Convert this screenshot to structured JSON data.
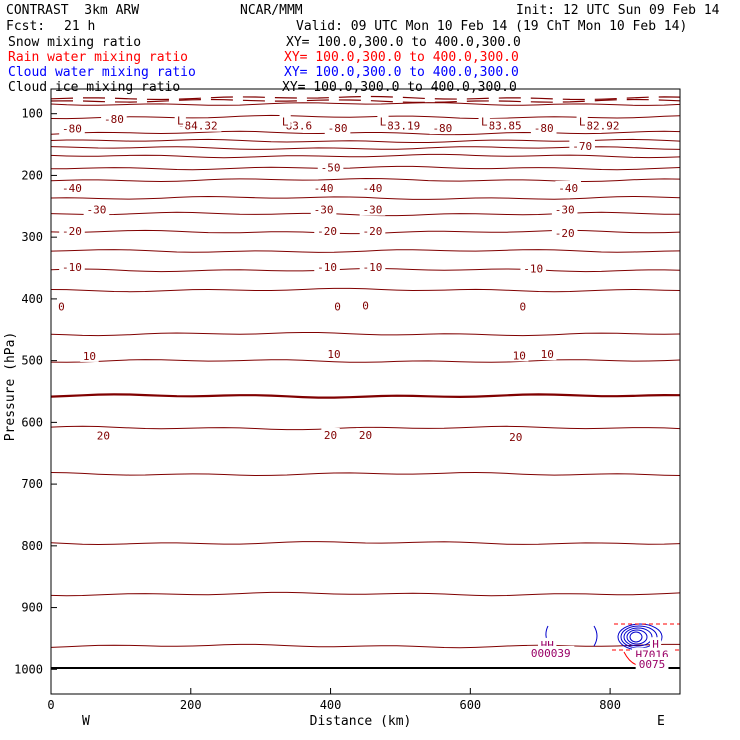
{
  "header": {
    "model": "CONTRAST  3km ARW",
    "org": "NCAR/MMM",
    "init": "Init: 12 UTC Sun 09 Feb 14",
    "fcst_label": "Fcst:",
    "fcst_value": "21 h",
    "valid": "Valid: 09 UTC Mon 10 Feb 14 (19 ChT Mon 10 Feb 14)"
  },
  "legend": [
    {
      "field": "Snow mixing ratio",
      "xy": "XY= 100.0,300.0 to 400.0,300.0",
      "color": "#000000"
    },
    {
      "field": "Rain water mixing ratio",
      "xy": "XY= 100.0,300.0 to 400.0,300.0",
      "color": "#ff0000"
    },
    {
      "field": "Cloud water mixing ratio",
      "xy": "XY= 100.0,300.0 to 400.0,300.0",
      "color": "#0000ff"
    },
    {
      "field": "Cloud ice mixing ratio",
      "xy": "XY= 100.0,300.0 to 400.0,300.0",
      "color": "#000000"
    }
  ],
  "colors": {
    "temperature": "#800000",
    "frame": "#000000",
    "cloud_water": "#0000cc",
    "rain": "#ff0000",
    "cloud_ice_label": "#990066"
  },
  "axes": {
    "xlabel": "Distance (km)",
    "ylabel": "Pressure (hPa)",
    "x_ticks": [
      "0",
      "200",
      "400",
      "600",
      "800"
    ],
    "y_ticks": [
      "100",
      "200",
      "300",
      "400",
      "500",
      "600",
      "700",
      "800",
      "900",
      "1000"
    ],
    "left_end": "W",
    "right_end": "E"
  },
  "chart_data": {
    "type": "contour-cross-section",
    "x_range_km": [
      0,
      900
    ],
    "p_range_hPa": [
      60,
      1040
    ],
    "isotherm_labels": [
      {
        "text": "-80",
        "x": 90,
        "p": 110
      },
      {
        "text": "-80",
        "x": 30,
        "p": 126
      },
      {
        "text": "-84.32",
        "x": 210,
        "p": 121
      },
      {
        "text": "-83.6",
        "x": 350,
        "p": 121
      },
      {
        "text": "-80",
        "x": 410,
        "p": 125
      },
      {
        "text": "-83.19",
        "x": 500,
        "p": 121
      },
      {
        "text": "-80",
        "x": 560,
        "p": 125
      },
      {
        "text": "-83.85",
        "x": 645,
        "p": 121
      },
      {
        "text": "-80",
        "x": 705,
        "p": 125
      },
      {
        "text": "-82.92",
        "x": 785,
        "p": 121
      },
      {
        "text": "-70",
        "x": 760,
        "p": 154
      },
      {
        "text": "-50",
        "x": 400,
        "p": 189
      },
      {
        "text": "-40",
        "x": 30,
        "p": 222
      },
      {
        "text": "-40",
        "x": 390,
        "p": 222
      },
      {
        "text": "-40",
        "x": 460,
        "p": 222
      },
      {
        "text": "-40",
        "x": 740,
        "p": 222
      },
      {
        "text": "-30",
        "x": 65,
        "p": 257
      },
      {
        "text": "-30",
        "x": 390,
        "p": 257
      },
      {
        "text": "-30",
        "x": 460,
        "p": 257
      },
      {
        "text": "-30",
        "x": 735,
        "p": 257
      },
      {
        "text": "-20",
        "x": 30,
        "p": 292
      },
      {
        "text": "-20",
        "x": 395,
        "p": 292
      },
      {
        "text": "-20",
        "x": 460,
        "p": 292
      },
      {
        "text": "-20",
        "x": 735,
        "p": 295
      },
      {
        "text": "-10",
        "x": 30,
        "p": 350
      },
      {
        "text": "-10",
        "x": 395,
        "p": 350
      },
      {
        "text": "-10",
        "x": 460,
        "p": 350
      },
      {
        "text": "-10",
        "x": 690,
        "p": 352
      },
      {
        "text": "0",
        "x": 15,
        "p": 414
      },
      {
        "text": "0",
        "x": 410,
        "p": 414
      },
      {
        "text": "0",
        "x": 450,
        "p": 412
      },
      {
        "text": "0",
        "x": 675,
        "p": 414
      },
      {
        "text": "10",
        "x": 55,
        "p": 494
      },
      {
        "text": "10",
        "x": 405,
        "p": 491
      },
      {
        "text": "10",
        "x": 670,
        "p": 493
      },
      {
        "text": "10",
        "x": 710,
        "p": 491
      },
      {
        "text": "20",
        "x": 75,
        "p": 623
      },
      {
        "text": "20",
        "x": 400,
        "p": 622
      },
      {
        "text": "20",
        "x": 450,
        "p": 622
      },
      {
        "text": "20",
        "x": 665,
        "p": 625
      }
    ],
    "low_markers": [
      {
        "text": "L",
        "x": 185,
        "p": 113
      },
      {
        "text": "L",
        "x": 335,
        "p": 114
      },
      {
        "text": "L",
        "x": 475,
        "p": 114
      },
      {
        "text": "L",
        "x": 620,
        "p": 114
      },
      {
        "text": "L",
        "x": 760,
        "p": 114
      }
    ],
    "high_markers": [
      {
        "text": "HH",
        "x": 710,
        "p": 962
      },
      {
        "text": "H",
        "x": 865,
        "p": 961
      }
    ],
    "extreme_values": [
      {
        "text": "000039",
        "x": 715,
        "p": 975
      },
      {
        "text": "H7016",
        "x": 860,
        "p": 978
      },
      {
        "text": "0075",
        "x": 860,
        "p": 993
      }
    ]
  }
}
